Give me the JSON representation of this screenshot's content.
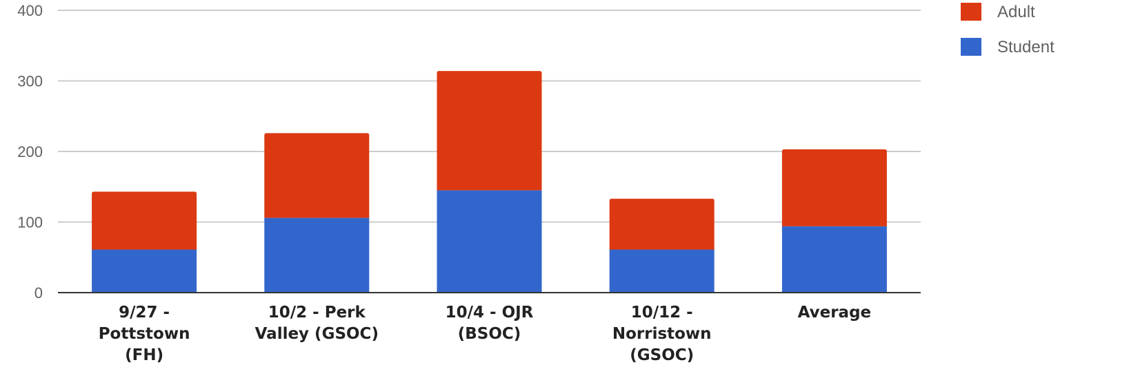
{
  "chart_data": {
    "type": "bar",
    "stacked": true,
    "categories": [
      [
        "9/27 -",
        "Pottstown",
        "(FH)"
      ],
      [
        "10/2 - Perk",
        "Valley (GSOC)"
      ],
      [
        "10/4 - OJR",
        "(BSOC)"
      ],
      [
        "10/12 -",
        "Norristown",
        "(GSOC)"
      ],
      [
        "Average"
      ]
    ],
    "series": [
      {
        "name": "Student",
        "color": "#3366cc",
        "values": [
          61,
          106,
          145,
          61,
          94
        ]
      },
      {
        "name": "Adult",
        "color": "#dc3912",
        "values": [
          82,
          120,
          169,
          72,
          109
        ]
      }
    ],
    "ylim": [
      0,
      400
    ],
    "yticks": [
      "0",
      "100",
      "200",
      "300",
      "400"
    ],
    "grid": true,
    "legend": "right",
    "legend_order": [
      "Adult",
      "Student"
    ]
  }
}
